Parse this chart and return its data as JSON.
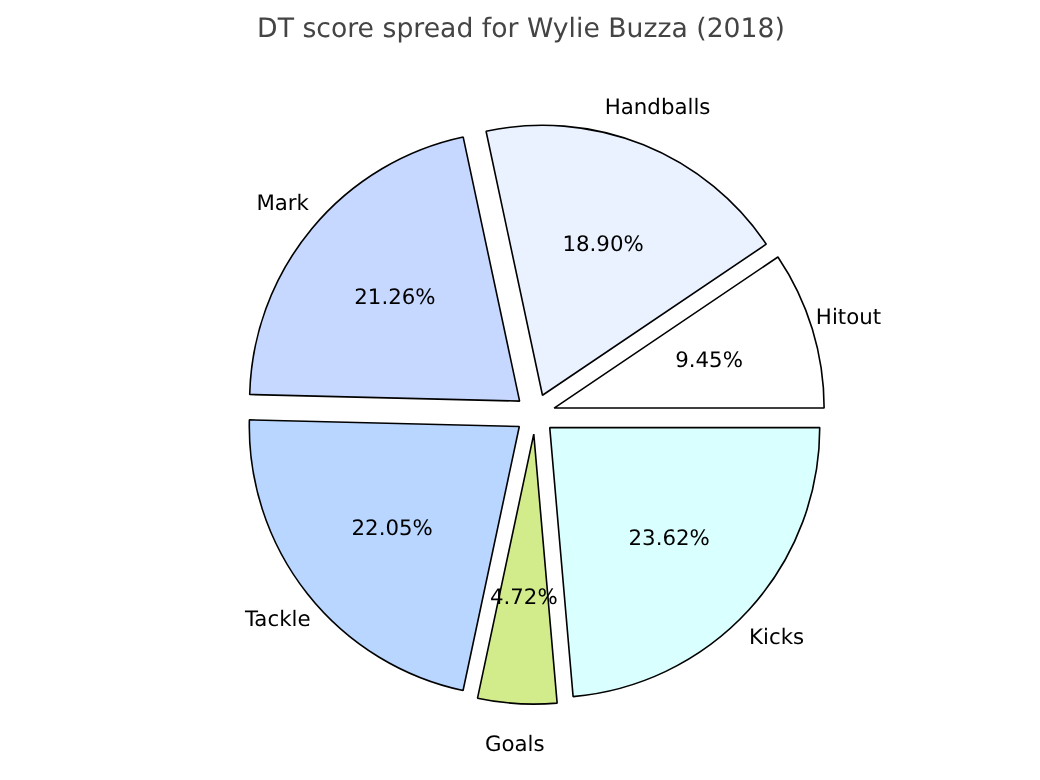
{
  "chart_data": {
    "type": "pie",
    "title": "DT score spread for Wylie Buzza (2018)",
    "categories": [
      "Hitout",
      "Handballs",
      "Mark",
      "Tackle",
      "Goals",
      "Kicks"
    ],
    "values": [
      9.45,
      18.9,
      21.26,
      22.05,
      4.72,
      23.62
    ],
    "value_labels": [
      "9.45%",
      "18.90%",
      "21.26%",
      "22.05%",
      "4.72%",
      "23.62%"
    ],
    "colors": [
      "#ffffff",
      "#eaf2ff",
      "#c6d8ff",
      "#b8d6ff",
      "#d2ec8c",
      "#d9ffff"
    ]
  }
}
